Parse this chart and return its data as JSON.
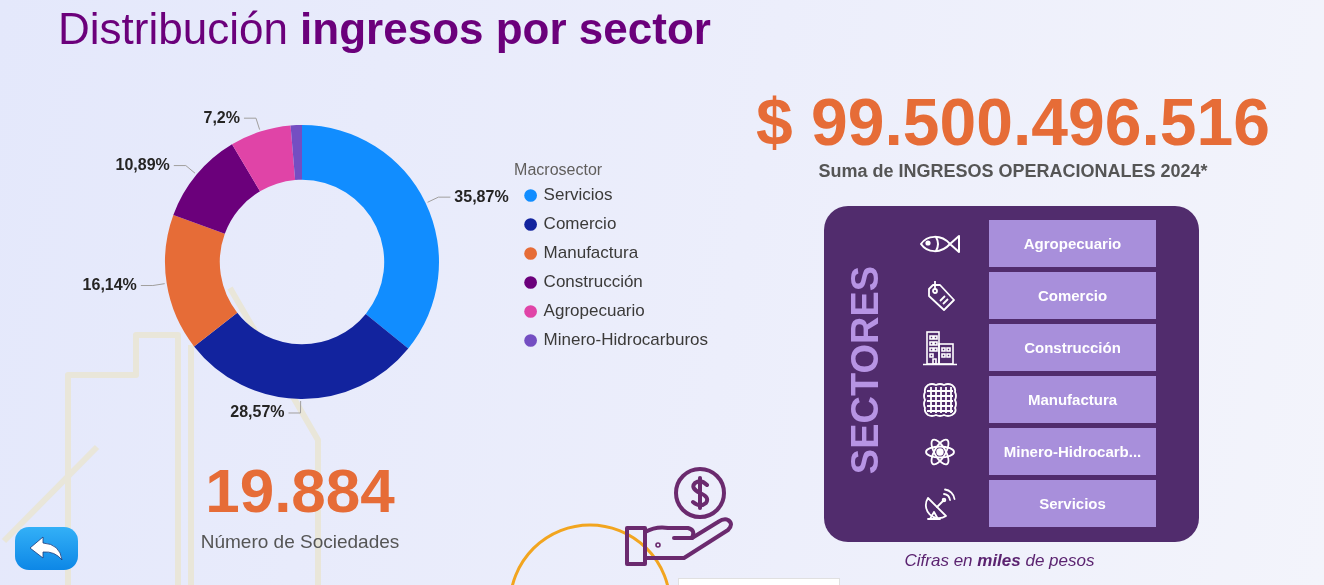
{
  "chart_data": [
    {
      "type": "donut",
      "title": "Distribución ingresos por sector",
      "legend_title": "Macrosector",
      "categories": [
        "Servicios",
        "Comercio",
        "Manufactura",
        "Construcción",
        "Agropecuario",
        "Minero-Hidrocarburos"
      ],
      "values": [
        35.87,
        28.57,
        16.14,
        10.89,
        7.2,
        1.33
      ],
      "value_labels": [
        "35,87%",
        "28,57%",
        "16,14%",
        "10,89%",
        "7,2%",
        null
      ],
      "colors": [
        "#118dff",
        "#12239e",
        "#e66c37",
        "#6b007b",
        "#e044a7",
        "#744ec2"
      ],
      "legend": "right"
    },
    {
      "type": "other",
      "title": "$ 99.500.496.516",
      "subtitle": "Suma de INGRESOS OPERACIONALES 2024*"
    },
    {
      "type": "other",
      "title": "SECTORES",
      "categories": [
        "Agropecuario",
        "Comercio",
        "Construcción",
        "Manufactura",
        "Minero-Hidrocarb...",
        "Servicios"
      ],
      "annotations": [
        "Cifras en miles de pesos"
      ]
    },
    {
      "type": "other",
      "title": "19.884",
      "subtitle": "Número de Sociedades"
    }
  ]
}
